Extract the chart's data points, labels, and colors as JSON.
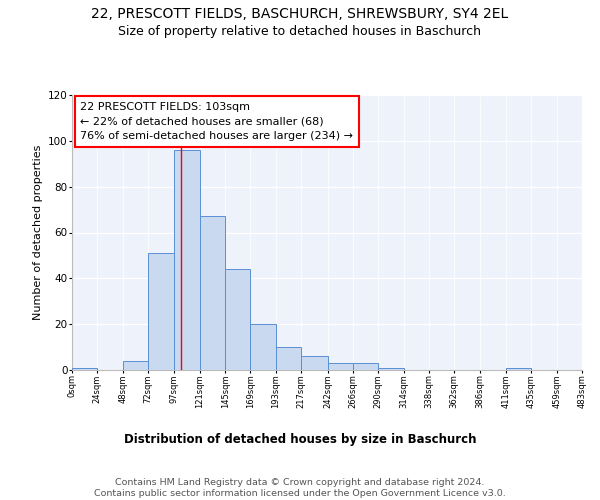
{
  "title1": "22, PRESCOTT FIELDS, BASCHURCH, SHREWSBURY, SY4 2EL",
  "title2": "Size of property relative to detached houses in Baschurch",
  "xlabel": "Distribution of detached houses by size in Baschurch",
  "ylabel": "Number of detached properties",
  "bar_values": [
    1,
    0,
    4,
    51,
    96,
    67,
    44,
    20,
    10,
    6,
    3,
    3,
    1,
    0,
    0,
    0,
    0,
    1,
    0,
    0
  ],
  "bin_edges": [
    0,
    24,
    48,
    72,
    97,
    121,
    145,
    169,
    193,
    217,
    242,
    266,
    290,
    314,
    338,
    362,
    386,
    411,
    435,
    459,
    483
  ],
  "tick_labels": [
    "0sqm",
    "24sqm",
    "48sqm",
    "72sqm",
    "97sqm",
    "121sqm",
    "145sqm",
    "169sqm",
    "193sqm",
    "217sqm",
    "242sqm",
    "266sqm",
    "290sqm",
    "314sqm",
    "338sqm",
    "362sqm",
    "386sqm",
    "411sqm",
    "435sqm",
    "459sqm",
    "483sqm"
  ],
  "bar_facecolor": "#c9d9f0",
  "bar_edgecolor": "#5b8fd4",
  "redline_x": 103,
  "annotation_text": "22 PRESCOTT FIELDS: 103sqm\n← 22% of detached houses are smaller (68)\n76% of semi-detached houses are larger (234) →",
  "ylim": [
    0,
    120
  ],
  "yticks": [
    0,
    20,
    40,
    60,
    80,
    100,
    120
  ],
  "bg_color": "#eef2fb",
  "footer_text": "Contains HM Land Registry data © Crown copyright and database right 2024.\nContains public sector information licensed under the Open Government Licence v3.0.",
  "title1_fontsize": 10,
  "title2_fontsize": 9,
  "xlabel_fontsize": 8.5,
  "ylabel_fontsize": 8,
  "footer_fontsize": 6.8,
  "annotation_fontsize": 8
}
